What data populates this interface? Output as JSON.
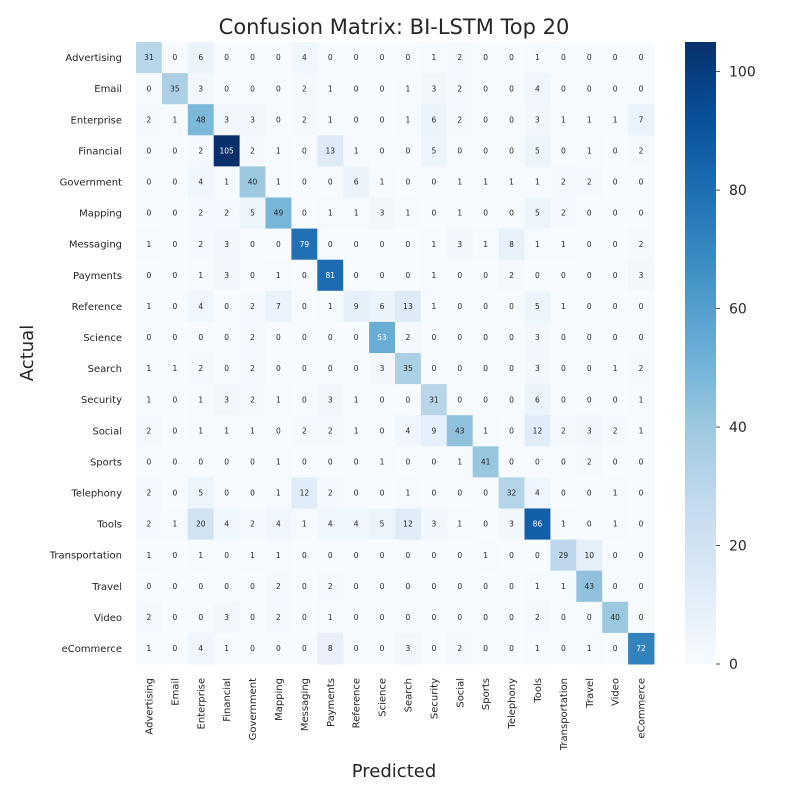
{
  "chart_data": {
    "type": "heatmap",
    "title": "Confusion Matrix: BI-LSTM Top 20",
    "xlabel": "Predicted",
    "ylabel": "Actual",
    "labels": [
      "Advertising",
      "Email",
      "Enterprise",
      "Financial",
      "Government",
      "Mapping",
      "Messaging",
      "Payments",
      "Reference",
      "Science",
      "Search",
      "Security",
      "Social",
      "Sports",
      "Telephony",
      "Tools",
      "Transportation",
      "Travel",
      "Video",
      "eCommerce"
    ],
    "matrix": [
      [
        31,
        0,
        6,
        0,
        0,
        0,
        4,
        0,
        0,
        0,
        0,
        1,
        2,
        0,
        0,
        1,
        0,
        0,
        0,
        0
      ],
      [
        0,
        35,
        3,
        0,
        0,
        0,
        2,
        1,
        0,
        0,
        1,
        3,
        2,
        0,
        0,
        4,
        0,
        0,
        0,
        0
      ],
      [
        2,
        1,
        48,
        3,
        3,
        0,
        2,
        1,
        0,
        0,
        1,
        6,
        2,
        0,
        0,
        3,
        1,
        1,
        1,
        7
      ],
      [
        0,
        0,
        2,
        105,
        2,
        1,
        0,
        13,
        1,
        0,
        0,
        5,
        0,
        0,
        0,
        5,
        0,
        1,
        0,
        2
      ],
      [
        0,
        0,
        4,
        1,
        40,
        1,
        0,
        0,
        6,
        1,
        0,
        0,
        1,
        1,
        1,
        1,
        2,
        2,
        0,
        0
      ],
      [
        0,
        0,
        2,
        2,
        5,
        49,
        0,
        1,
        1,
        3,
        1,
        0,
        1,
        0,
        0,
        5,
        2,
        0,
        0,
        0
      ],
      [
        1,
        0,
        2,
        3,
        0,
        0,
        79,
        0,
        0,
        0,
        0,
        1,
        3,
        1,
        8,
        1,
        1,
        0,
        0,
        2
      ],
      [
        0,
        0,
        1,
        3,
        0,
        1,
        0,
        81,
        0,
        0,
        0,
        1,
        0,
        0,
        2,
        0,
        0,
        0,
        0,
        3
      ],
      [
        1,
        0,
        4,
        0,
        2,
        7,
        0,
        1,
        9,
        6,
        13,
        1,
        0,
        0,
        0,
        5,
        1,
        0,
        0,
        0
      ],
      [
        0,
        0,
        0,
        0,
        2,
        0,
        0,
        0,
        0,
        53,
        2,
        0,
        0,
        0,
        0,
        3,
        0,
        0,
        0,
        0
      ],
      [
        1,
        1,
        2,
        0,
        2,
        0,
        0,
        0,
        0,
        3,
        35,
        0,
        0,
        0,
        0,
        3,
        0,
        0,
        1,
        2
      ],
      [
        1,
        0,
        1,
        3,
        2,
        1,
        0,
        3,
        1,
        0,
        0,
        31,
        0,
        0,
        0,
        6,
        0,
        0,
        0,
        1
      ],
      [
        2,
        0,
        1,
        1,
        1,
        0,
        2,
        2,
        1,
        0,
        4,
        9,
        43,
        1,
        0,
        12,
        2,
        3,
        2,
        1
      ],
      [
        0,
        0,
        0,
        0,
        0,
        1,
        0,
        0,
        0,
        1,
        0,
        0,
        1,
        41,
        0,
        0,
        0,
        2,
        0,
        0
      ],
      [
        2,
        0,
        5,
        0,
        0,
        1,
        12,
        2,
        0,
        0,
        1,
        0,
        0,
        0,
        32,
        4,
        0,
        0,
        1,
        0
      ],
      [
        2,
        1,
        20,
        4,
        2,
        4,
        1,
        4,
        4,
        5,
        12,
        3,
        1,
        0,
        3,
        86,
        1,
        0,
        1,
        0
      ],
      [
        1,
        0,
        1,
        0,
        1,
        1,
        0,
        0,
        0,
        0,
        0,
        0,
        0,
        1,
        0,
        0,
        29,
        10,
        0,
        0
      ],
      [
        0,
        0,
        0,
        0,
        0,
        2,
        0,
        2,
        0,
        0,
        0,
        0,
        0,
        0,
        0,
        1,
        1,
        43,
        0,
        0
      ],
      [
        2,
        0,
        0,
        3,
        0,
        2,
        0,
        1,
        0,
        0,
        0,
        0,
        0,
        0,
        0,
        2,
        0,
        0,
        40,
        0
      ],
      [
        1,
        0,
        4,
        1,
        0,
        0,
        0,
        8,
        0,
        0,
        3,
        0,
        2,
        0,
        0,
        1,
        0,
        1,
        0,
        72
      ]
    ],
    "colorbar": {
      "min": 0,
      "max": 105,
      "ticks": [
        0,
        20,
        40,
        60,
        80,
        100
      ],
      "colormap": "Blues"
    },
    "grid": false
  }
}
